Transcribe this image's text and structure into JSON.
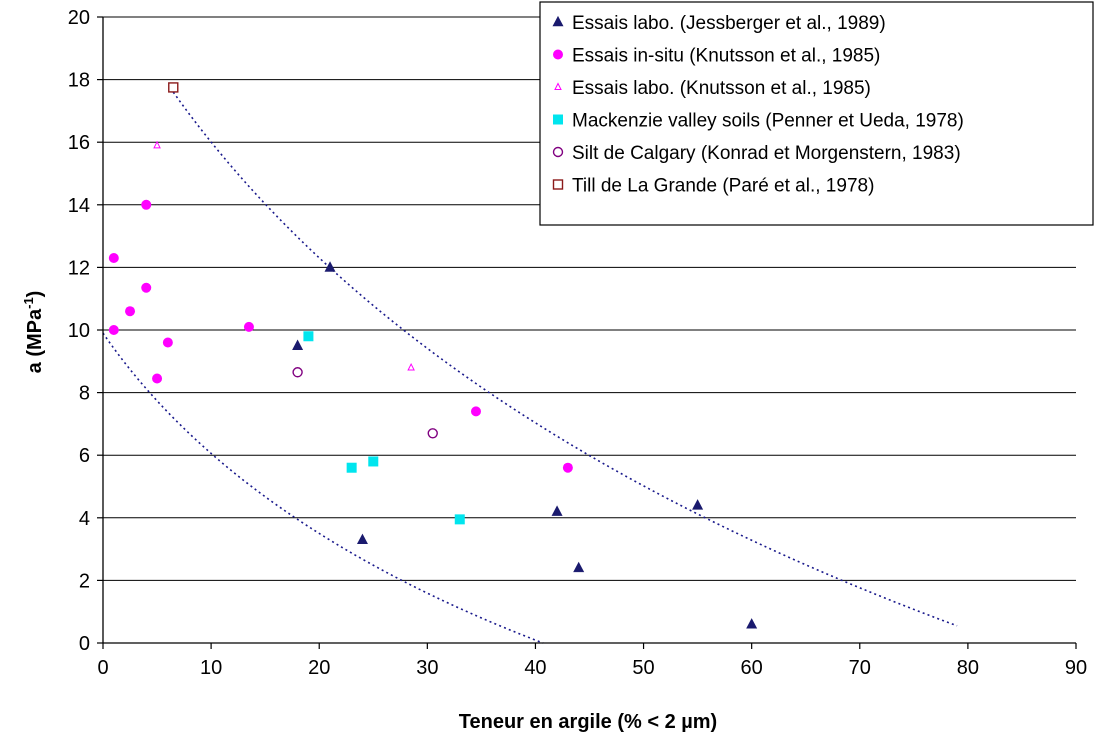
{
  "chart_data": {
    "type": "scatter",
    "xlabel": "Teneur en argile (% < 2 µm)",
    "ylabel": "a (MPa-1)",
    "ylabel_main": "a (MPa",
    "ylabel_sup": "-1",
    "ylabel_close": ")",
    "xlim": [
      0,
      90
    ],
    "ylim": [
      0,
      20
    ],
    "xticks": [
      0,
      10,
      20,
      30,
      40,
      50,
      60,
      70,
      80,
      90
    ],
    "yticks": [
      0,
      2,
      4,
      6,
      8,
      10,
      12,
      14,
      16,
      18,
      20
    ],
    "grid": "horizontal",
    "legend_position": "top-right",
    "series": [
      {
        "name": "Essais labo. (Jessberger et al., 1989)",
        "marker": "triangle-filled",
        "color": "#1a1a6e",
        "points": [
          [
            18,
            9.5
          ],
          [
            21,
            12.0
          ],
          [
            24,
            3.3
          ],
          [
            42,
            4.2
          ],
          [
            44,
            2.4
          ],
          [
            55,
            4.4
          ],
          [
            60,
            0.6
          ]
        ]
      },
      {
        "name": "Essais in-situ (Knutsson et al., 1985)",
        "marker": "circle-filled",
        "color": "#ff00ff",
        "points": [
          [
            1,
            12.3
          ],
          [
            1,
            10.0
          ],
          [
            2.5,
            10.6
          ],
          [
            4,
            14.0
          ],
          [
            4,
            11.35
          ],
          [
            5,
            8.45
          ],
          [
            6,
            9.6
          ],
          [
            13.5,
            10.1
          ],
          [
            34.5,
            7.4
          ],
          [
            43,
            5.6
          ]
        ]
      },
      {
        "name": "Essais labo. (Knutsson et al., 1985)",
        "marker": "triangle-open",
        "color": "#ff00ff",
        "points": [
          [
            5,
            15.9
          ],
          [
            28.5,
            8.8
          ]
        ]
      },
      {
        "name": "Mackenzie valley soils (Penner et Ueda, 1978)",
        "marker": "square-filled",
        "color": "#00e5ee",
        "points": [
          [
            19,
            9.8
          ],
          [
            23,
            5.6
          ],
          [
            25,
            5.8
          ],
          [
            33,
            3.95
          ]
        ]
      },
      {
        "name": "Silt de Calgary (Konrad et Morgenstern, 1983)",
        "marker": "circle-open",
        "color": "#800080",
        "points": [
          [
            18,
            8.65
          ],
          [
            30.5,
            6.7
          ]
        ]
      },
      {
        "name": "Till de La Grande (Paré et al., 1978)",
        "marker": "square-open",
        "color": "#8b1a1a",
        "points": [
          [
            6.5,
            17.75
          ]
        ]
      }
    ],
    "trendlines": [
      {
        "style": "dotted",
        "color": "#1a1a8c",
        "from": [
          0,
          9.9
        ],
        "to": [
          40.7,
          0
        ]
      },
      {
        "style": "dotted",
        "color": "#1a1a8c",
        "from": [
          6.5,
          17.6
        ],
        "to": [
          79,
          0.55
        ]
      }
    ]
  }
}
